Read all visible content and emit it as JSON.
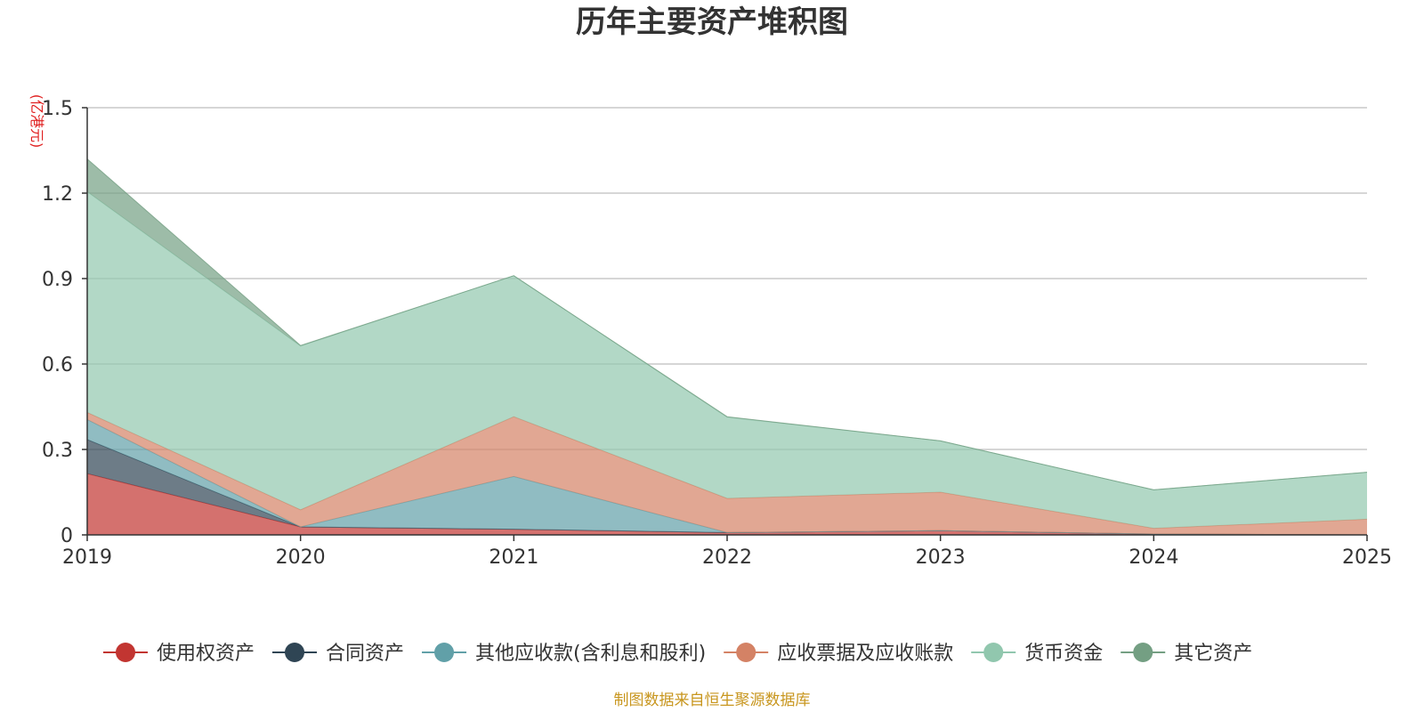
{
  "chart_data": {
    "type": "area",
    "stacked": true,
    "title": "历年主要资产堆积图",
    "unit_label": "(亿港元)",
    "categories": [
      "2019",
      "2020",
      "2021",
      "2022",
      "2023",
      "2024",
      "2025"
    ],
    "y_ticks": [
      "0",
      "0.3",
      "0.6",
      "0.9",
      "1.2",
      "1.5"
    ],
    "ylim": [
      0,
      1.5
    ],
    "grid": true,
    "legend_position": "bottom",
    "series": [
      {
        "name": "使用权资产",
        "color": "#c23531",
        "values": [
          0.215,
          0.028,
          0.02,
          0.008,
          0.015,
          0.003,
          0.0
        ]
      },
      {
        "name": "合同资产",
        "color": "#2f4554",
        "values": [
          0.12,
          0.0,
          0.0,
          0.0,
          0.0,
          0.0,
          0.0
        ]
      },
      {
        "name": "其他应收款(含利息和股利)",
        "color": "#61a0a8",
        "values": [
          0.07,
          0.0,
          0.185,
          0.0,
          0.0,
          0.0,
          0.0
        ]
      },
      {
        "name": "应收票据及应收账款",
        "color": "#d48265",
        "values": [
          0.025,
          0.06,
          0.21,
          0.12,
          0.135,
          0.02,
          0.055
        ]
      },
      {
        "name": "货币资金",
        "color": "#91c7ae",
        "values": [
          0.775,
          0.575,
          0.495,
          0.285,
          0.18,
          0.135,
          0.165
        ]
      },
      {
        "name": "其它资产",
        "color": "#749f83",
        "values": [
          0.115,
          0.002,
          0.0,
          0.002,
          0.0,
          0.0,
          0.0
        ]
      }
    ]
  },
  "source_text": "制图数据来自恒生聚源数据库"
}
